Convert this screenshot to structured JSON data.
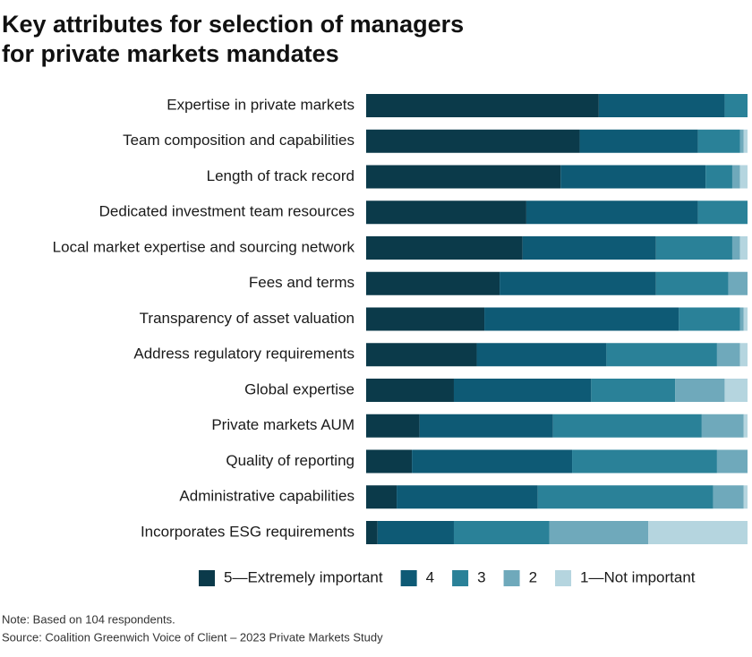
{
  "chart_data": {
    "type": "stacked_bar_horizontal",
    "title": [
      "Key attributes for selection of managers",
      "for private markets mandates"
    ],
    "categories": [
      "Expertise in private markets",
      "Team composition and capabilities",
      "Length of track record",
      "Dedicated investment team resources",
      "Local market expertise and sourcing network",
      "Fees and terms",
      "Transparency of asset valuation",
      "Address regulatory requirements",
      "Global expertise",
      "Private markets AUM",
      "Quality of reporting",
      "Administrative capabilities",
      "Incorporates ESG requirements"
    ],
    "series": [
      {
        "name": "5—Extremely important",
        "color": "#0b3a4a",
        "values": [
          61,
          56,
          51,
          42,
          41,
          35,
          31,
          29,
          23,
          14,
          12,
          8,
          3
        ]
      },
      {
        "name": "4",
        "color": "#0e5a75",
        "values": [
          33,
          31,
          38,
          45,
          35,
          41,
          51,
          34,
          36,
          35,
          42,
          37,
          20
        ]
      },
      {
        "name": "3",
        "color": "#2a8198",
        "values": [
          6,
          11,
          7,
          13,
          20,
          19,
          16,
          29,
          22,
          39,
          38,
          46,
          25
        ]
      },
      {
        "name": "2",
        "color": "#6fa9bb",
        "values": [
          0,
          1,
          2,
          0,
          2,
          5,
          1,
          6,
          13,
          11,
          8,
          8,
          26
        ]
      },
      {
        "name": "1—Not important",
        "color": "#b5d5df",
        "values": [
          0,
          1,
          2,
          0,
          2,
          0,
          1,
          2,
          6,
          1,
          0,
          1,
          26
        ]
      }
    ],
    "xlim": [
      0,
      100
    ],
    "notes": [
      "Note: Based on 104 respondents.",
      "Source: Coalition Greenwich Voice of Client – 2023 Private Markets Study"
    ]
  }
}
